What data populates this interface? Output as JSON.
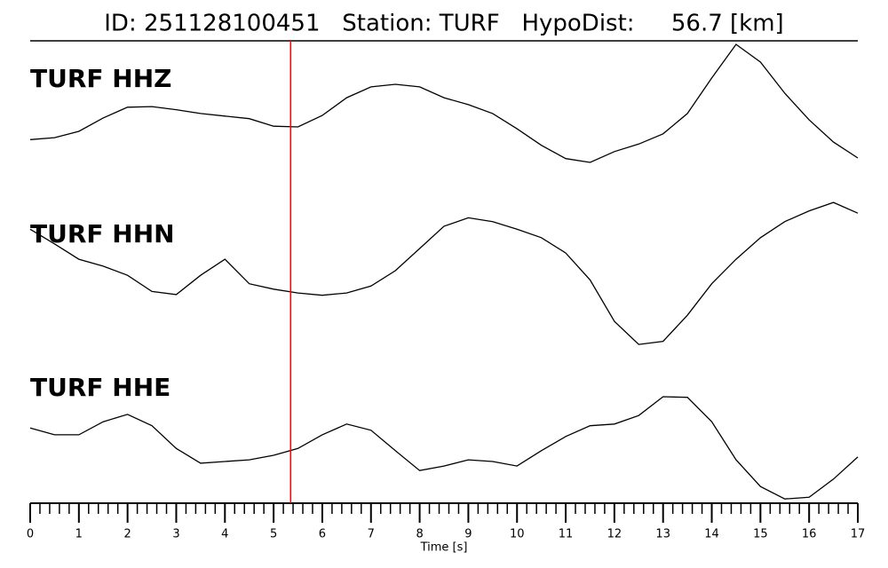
{
  "chart_data": {
    "type": "line",
    "title": "ID: 251128100451   Station: TURF   HypoDist:     56.7 [km]",
    "xlabel": "Time [s]",
    "xlim": [
      0,
      17
    ],
    "xticks": [
      0,
      1,
      2,
      3,
      4,
      5,
      6,
      7,
      8,
      9,
      10,
      11,
      12,
      13,
      14,
      15,
      16,
      17
    ],
    "xminorticks": [
      0.2,
      0.4,
      0.6,
      0.8,
      1.2,
      1.4,
      1.6,
      1.8,
      2.2,
      2.4,
      2.6,
      2.8,
      3.2,
      3.4,
      3.6,
      3.8,
      4.2,
      4.4,
      4.6,
      4.8,
      5.2,
      5.4,
      5.6,
      5.8,
      6.2,
      6.4,
      6.6,
      6.8,
      7.2,
      7.4,
      7.6,
      7.8,
      8.2,
      8.4,
      8.6,
      8.8,
      9.2,
      9.4,
      9.6,
      9.8,
      10.2,
      10.4,
      10.6,
      10.8,
      11.2,
      11.4,
      11.6,
      11.8,
      12.2,
      12.4,
      12.6,
      12.8,
      13.2,
      13.4,
      13.6,
      13.8,
      14.2,
      14.4,
      14.6,
      14.8,
      15.2,
      15.4,
      15.6,
      15.8,
      16.2,
      16.4,
      16.6,
      16.8
    ],
    "pick": {
      "x": 5.35,
      "color": "#ff0000"
    },
    "label_color": "#4c9a00",
    "x": [
      0,
      0.5,
      1,
      1.5,
      2,
      2.5,
      3,
      3.5,
      4,
      4.5,
      5,
      5.5,
      6,
      6.5,
      7,
      7.5,
      8,
      8.5,
      9,
      9.5,
      10,
      10.5,
      11,
      11.5,
      12,
      12.5,
      13,
      13.5,
      14,
      14.5,
      15,
      15.5,
      16,
      16.5,
      17
    ],
    "series": [
      {
        "name": "TURF HHZ",
        "color": "#000000",
        "ylim": [
          -1,
          1
        ],
        "values": [
          -0.57,
          -0.54,
          -0.44,
          -0.23,
          -0.06,
          -0.05,
          -0.1,
          -0.16,
          -0.2,
          -0.24,
          -0.36,
          -0.37,
          -0.19,
          0.09,
          0.26,
          0.3,
          0.26,
          0.09,
          -0.02,
          -0.16,
          -0.4,
          -0.66,
          -0.87,
          -0.93,
          -0.76,
          -0.64,
          -0.48,
          -0.16,
          0.4,
          0.93,
          0.65,
          0.16,
          -0.26,
          -0.61,
          -0.86
        ]
      },
      {
        "name": "TURF HHN",
        "color": "#000000",
        "ylim": [
          -1,
          1
        ],
        "values": [
          0.58,
          0.39,
          0.19,
          0.1,
          -0.02,
          -0.23,
          -0.27,
          -0.02,
          0.19,
          -0.13,
          -0.2,
          -0.25,
          -0.28,
          -0.25,
          -0.16,
          0.04,
          0.33,
          0.62,
          0.73,
          0.68,
          0.58,
          0.47,
          0.27,
          -0.08,
          -0.62,
          -0.92,
          -0.88,
          -0.54,
          -0.13,
          0.19,
          0.47,
          0.68,
          0.82,
          0.93,
          0.79
        ]
      },
      {
        "name": "TURF HHE",
        "color": "#000000",
        "ylim": [
          -1,
          1
        ],
        "values": [
          0.34,
          0.22,
          0.22,
          0.45,
          0.58,
          0.38,
          -0.02,
          -0.28,
          -0.25,
          -0.22,
          -0.14,
          -0.02,
          0.22,
          0.41,
          0.3,
          -0.06,
          -0.41,
          -0.33,
          -0.22,
          -0.25,
          -0.33,
          -0.06,
          0.19,
          0.38,
          0.41,
          0.56,
          0.89,
          0.88,
          0.45,
          -0.22,
          -0.69,
          -0.91,
          -0.88,
          -0.56,
          -0.17
        ]
      }
    ]
  }
}
